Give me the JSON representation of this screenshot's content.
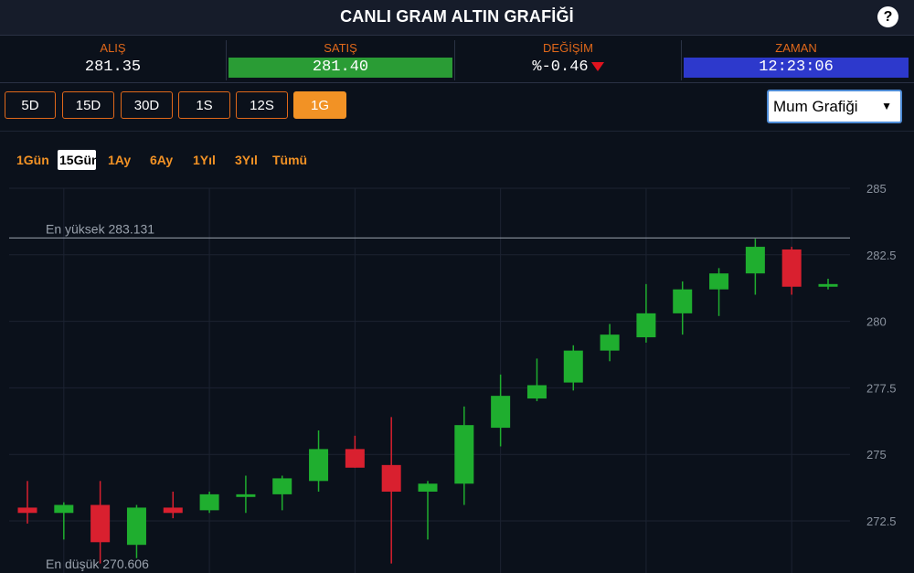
{
  "header": {
    "title": "CANLI GRAM ALTIN GRAFİĞİ",
    "help_label": "?"
  },
  "quotes": {
    "bid": {
      "label": "ALIŞ",
      "value": "281.35"
    },
    "ask": {
      "label": "SATIŞ",
      "value": "281.40"
    },
    "change": {
      "label": "DEĞİŞİM",
      "value": "%-0.46"
    },
    "time": {
      "label": "ZAMAN",
      "value": "12:23:06"
    }
  },
  "periods": [
    "5D",
    "15D",
    "30D",
    "1S",
    "12S",
    "1G"
  ],
  "active_period": "1G",
  "chart_type_select": {
    "value": "Mum Grafiği"
  },
  "ranges": [
    "1Gün",
    "15Gün",
    "1Ay",
    "6Ay",
    "1Yıl",
    "3Yıl",
    "Tümü"
  ],
  "active_range": "15Gün",
  "colors": {
    "up": "#1fae2f",
    "down": "#d9202f",
    "accent": "#f29225",
    "label_orange": "#e0681a"
  },
  "chart_data": {
    "type": "candlestick",
    "ylim": [
      270,
      285
    ],
    "yticks": [
      272.5,
      275,
      277.5,
      280,
      282.5,
      285
    ],
    "grid": true,
    "high_label": "En yüksek 283.131",
    "low_label": "En düşük 270.606",
    "high": 283.131,
    "low": 270.606,
    "candles": [
      {
        "o": 273.0,
        "h": 274.0,
        "l": 272.4,
        "c": 272.8
      },
      {
        "o": 272.8,
        "h": 273.2,
        "l": 271.8,
        "c": 273.1
      },
      {
        "o": 273.1,
        "h": 274.0,
        "l": 270.9,
        "c": 271.7
      },
      {
        "o": 271.6,
        "h": 273.1,
        "l": 271.1,
        "c": 273.0
      },
      {
        "o": 273.0,
        "h": 273.6,
        "l": 272.6,
        "c": 272.8
      },
      {
        "o": 272.9,
        "h": 273.6,
        "l": 272.8,
        "c": 273.5
      },
      {
        "o": 273.4,
        "h": 274.2,
        "l": 272.8,
        "c": 273.5
      },
      {
        "o": 273.5,
        "h": 274.2,
        "l": 272.9,
        "c": 274.1
      },
      {
        "o": 274.0,
        "h": 275.9,
        "l": 273.6,
        "c": 275.2
      },
      {
        "o": 275.2,
        "h": 275.7,
        "l": 274.5,
        "c": 274.5
      },
      {
        "o": 274.6,
        "h": 276.4,
        "l": 270.9,
        "c": 273.6
      },
      {
        "o": 273.6,
        "h": 274.0,
        "l": 271.8,
        "c": 273.9
      },
      {
        "o": 273.9,
        "h": 276.8,
        "l": 273.1,
        "c": 276.1
      },
      {
        "o": 276.0,
        "h": 278.0,
        "l": 275.3,
        "c": 277.2
      },
      {
        "o": 277.1,
        "h": 278.6,
        "l": 277.0,
        "c": 277.6
      },
      {
        "o": 277.7,
        "h": 279.1,
        "l": 277.4,
        "c": 278.9
      },
      {
        "o": 278.9,
        "h": 279.9,
        "l": 278.5,
        "c": 279.5
      },
      {
        "o": 279.4,
        "h": 281.4,
        "l": 279.2,
        "c": 280.3
      },
      {
        "o": 280.3,
        "h": 281.5,
        "l": 279.5,
        "c": 281.2
      },
      {
        "o": 281.2,
        "h": 282.0,
        "l": 280.2,
        "c": 281.8
      },
      {
        "o": 281.8,
        "h": 283.1,
        "l": 281.0,
        "c": 282.8
      },
      {
        "o": 282.7,
        "h": 282.8,
        "l": 281.0,
        "c": 281.3
      },
      {
        "o": 281.3,
        "h": 281.6,
        "l": 281.2,
        "c": 281.4
      }
    ]
  }
}
